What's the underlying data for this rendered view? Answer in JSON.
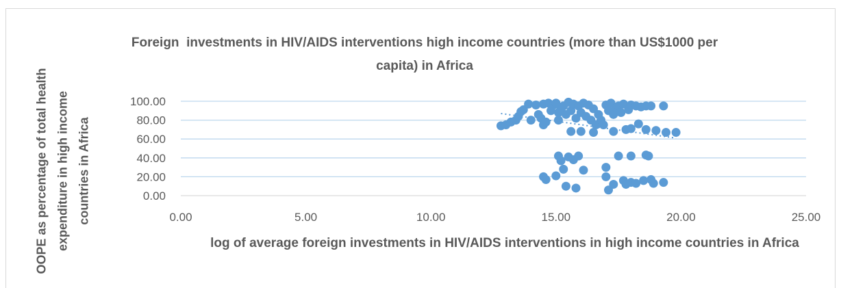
{
  "chart_data": {
    "type": "scatter",
    "title": "Foreign  investments in HIV/AIDS interventions high income countries (more than US$1000 per capita) in Africa",
    "xlabel": "log of  average foreign  investments in HIV/AIDS interventions in high income countries in Africa",
    "ylabel": "OOPE as percentage of total health expenditure in high income countries in Africa",
    "xlim": [
      0,
      25
    ],
    "ylim": [
      0,
      100
    ],
    "x_ticks": [
      "0.00",
      "5.00",
      "10.00",
      "15.00",
      "20.00",
      "25.00"
    ],
    "y_ticks": [
      "0.00",
      "20.00",
      "40.00",
      "60.00",
      "80.00",
      "100.00"
    ],
    "grid": "horizontal",
    "legend": "none",
    "marker_color": "#5b9bd5",
    "trendline": {
      "style": "dotted",
      "x": [
        12.8,
        19.8
      ],
      "y": [
        87,
        61
      ]
    },
    "series": [
      {
        "points": [
          [
            12.8,
            74
          ],
          [
            13.0,
            75
          ],
          [
            13.2,
            78
          ],
          [
            13.4,
            80
          ],
          [
            13.5,
            84
          ],
          [
            13.6,
            89
          ],
          [
            13.7,
            91
          ],
          [
            13.9,
            97
          ],
          [
            14.0,
            80
          ],
          [
            14.2,
            96
          ],
          [
            14.3,
            86
          ],
          [
            14.4,
            82
          ],
          [
            14.5,
            97
          ],
          [
            14.5,
            75
          ],
          [
            14.6,
            78
          ],
          [
            14.7,
            98
          ],
          [
            14.8,
            90
          ],
          [
            14.9,
            96
          ],
          [
            15.0,
            98
          ],
          [
            15.1,
            88
          ],
          [
            15.1,
            80
          ],
          [
            15.2,
            92
          ],
          [
            15.3,
            95
          ],
          [
            15.4,
            86
          ],
          [
            15.5,
            99
          ],
          [
            15.6,
            90
          ],
          [
            15.7,
            97
          ],
          [
            15.8,
            82
          ],
          [
            15.9,
            95
          ],
          [
            16.0,
            88
          ],
          [
            16.1,
            98
          ],
          [
            16.2,
            84
          ],
          [
            16.3,
            96
          ],
          [
            16.4,
            80
          ],
          [
            16.5,
            92
          ],
          [
            16.6,
            75
          ],
          [
            16.7,
            86
          ],
          [
            16.8,
            80
          ],
          [
            16.9,
            75
          ],
          [
            17.0,
            96
          ],
          [
            17.1,
            90
          ],
          [
            17.2,
            98
          ],
          [
            17.3,
            86
          ],
          [
            17.4,
            93
          ],
          [
            17.5,
            95
          ],
          [
            17.6,
            88
          ],
          [
            17.7,
            97
          ],
          [
            17.9,
            91
          ],
          [
            18.0,
            96
          ],
          [
            18.2,
            95
          ],
          [
            18.4,
            94
          ],
          [
            18.6,
            95
          ],
          [
            18.8,
            95
          ],
          [
            19.3,
            95
          ],
          [
            15.6,
            68
          ],
          [
            16.0,
            68
          ],
          [
            16.5,
            67
          ],
          [
            17.3,
            68
          ],
          [
            17.8,
            70
          ],
          [
            18.0,
            71
          ],
          [
            18.3,
            76
          ],
          [
            18.6,
            70
          ],
          [
            19.0,
            69
          ],
          [
            19.4,
            67
          ],
          [
            19.8,
            67
          ],
          [
            15.1,
            42
          ],
          [
            15.2,
            37
          ],
          [
            15.5,
            41
          ],
          [
            15.7,
            38
          ],
          [
            15.9,
            42
          ],
          [
            17.5,
            42
          ],
          [
            18.0,
            42
          ],
          [
            18.6,
            43
          ],
          [
            18.7,
            42
          ],
          [
            17.0,
            30
          ],
          [
            15.3,
            28
          ],
          [
            16.1,
            27
          ],
          [
            14.5,
            20
          ],
          [
            14.6,
            17
          ],
          [
            15.0,
            21
          ],
          [
            17.0,
            20
          ],
          [
            17.7,
            16
          ],
          [
            17.8,
            12
          ],
          [
            18.0,
            14
          ],
          [
            18.2,
            13
          ],
          [
            18.5,
            16
          ],
          [
            18.8,
            17
          ],
          [
            18.9,
            13
          ],
          [
            19.3,
            14
          ],
          [
            15.4,
            10
          ],
          [
            15.8,
            8
          ],
          [
            17.1,
            6
          ],
          [
            17.3,
            12
          ]
        ]
      }
    ]
  }
}
